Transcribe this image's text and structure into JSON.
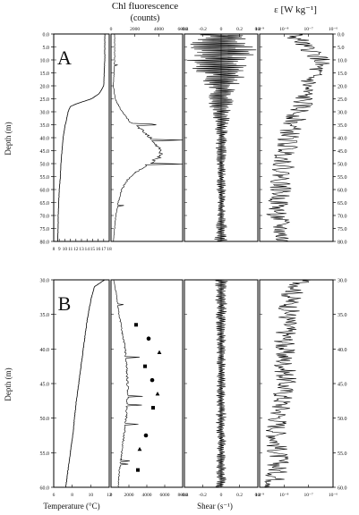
{
  "figure": {
    "header_chl": "Chl fluorescence",
    "header_counts": "(counts)",
    "header_eps": "ε [W kg⁻¹]",
    "xlabel_temp": "Temperature (°C)",
    "xlabel_shear": "Shear (s⁻¹)",
    "ylabel": "Depth (m)"
  },
  "chart_data": [
    {
      "panel_label": "A",
      "type": "line",
      "ylabel": "Depth (m)",
      "ylim": [
        80,
        0
      ],
      "depth_ticks": [
        "0.0",
        "5.0",
        "10.0",
        "15.0",
        "20.0",
        "25.0",
        "30.0",
        "35.0",
        "40.0",
        "45.0",
        "50.0",
        "55.0",
        "60.0",
        "65.0",
        "70.0",
        "75.0",
        "80.0"
      ],
      "subplots": [
        {
          "name": "temperature",
          "xlim": [
            8,
            18
          ],
          "xticks": [
            "8",
            "9",
            "10",
            "11",
            "12",
            "13",
            "14",
            "15",
            "16",
            "17",
            "18"
          ],
          "depth": [
            0,
            10,
            20,
            23,
            25,
            27,
            28,
            30,
            33,
            36,
            40,
            45,
            50,
            55,
            60,
            65,
            70,
            75,
            80
          ],
          "values": [
            17.2,
            17.2,
            17.0,
            16.2,
            14.8,
            12.0,
            11.0,
            10.6,
            10.3,
            10.0,
            9.7,
            9.5,
            9.3,
            9.2,
            9.0,
            8.9,
            8.8,
            8.8,
            8.7
          ]
        },
        {
          "name": "chl_fluorescence",
          "xlim": [
            0,
            6000
          ],
          "xticks": [
            "0",
            "2000",
            "4000",
            "6000"
          ],
          "depth": [
            0,
            10,
            20,
            25,
            30,
            34,
            37,
            40,
            43,
            46,
            48,
            50,
            53,
            56,
            60,
            65,
            70,
            75,
            80
          ],
          "values": [
            300,
            300,
            200,
            350,
            900,
            1600,
            2600,
            3300,
            3800,
            4200,
            3900,
            3200,
            2200,
            1400,
            900,
            600,
            400,
            300,
            200
          ]
        },
        {
          "name": "shear",
          "xlim": [
            -0.4,
            0.4
          ],
          "xticks": [
            "-0.4",
            "-0.2",
            "0",
            "0.2",
            "0.4"
          ],
          "depth": [
            0,
            5,
            10,
            15,
            20,
            25,
            30,
            35,
            40,
            45,
            50,
            55,
            60,
            65,
            70,
            75,
            80
          ],
          "values": [
            0.3,
            0.38,
            0.4,
            0.3,
            0.2,
            0.15,
            0.12,
            0.08,
            0.07,
            0.06,
            0.05,
            0.05,
            0.06,
            0.05,
            0.05,
            0.07,
            0.08
          ]
        },
        {
          "name": "epsilon",
          "xscale": "log",
          "xlim": [
            1e-09,
            1e-06
          ],
          "xticks": [
            "10⁻⁹",
            "10⁻⁸",
            "10⁻⁷",
            "10⁻⁶"
          ],
          "depth": [
            0,
            5,
            10,
            15,
            20,
            25,
            30,
            35,
            40,
            45,
            50,
            55,
            60,
            65,
            70,
            75,
            80
          ],
          "values": [
            2e-08,
            6e-08,
            3e-07,
            1.5e-07,
            8e-08,
            6e-08,
            4e-08,
            2e-08,
            1.5e-08,
            1.2e-08,
            1e-08,
            8e-09,
            7e-09,
            6e-09,
            5e-09,
            7e-09,
            8e-09
          ]
        }
      ]
    },
    {
      "panel_label": "B",
      "type": "line",
      "ylabel": "Depth (m)",
      "ylim": [
        60,
        30
      ],
      "depth_ticks": [
        "30.0",
        "35.0",
        "40.0",
        "45.0",
        "50.0",
        "55.0",
        "60.0"
      ],
      "subplots": [
        {
          "name": "temperature",
          "xlim": [
            6,
            12
          ],
          "xticks": [
            "6",
            "8",
            "10",
            "12"
          ],
          "depth": [
            30,
            31,
            33,
            36,
            40,
            44,
            48,
            52,
            56,
            60
          ],
          "values": [
            11.5,
            10.4,
            10.0,
            9.6,
            9.2,
            8.8,
            8.4,
            8.1,
            7.7,
            7.3
          ]
        },
        {
          "name": "chl_fluorescence",
          "xlim": [
            0,
            8000
          ],
          "xticks": [
            "0",
            "2000",
            "4000",
            "6000",
            "8000"
          ],
          "depth": [
            30,
            32,
            35,
            38,
            40,
            42,
            44,
            46,
            48,
            50,
            52,
            54,
            56,
            58,
            60
          ],
          "values": [
            300,
            600,
            900,
            1300,
            1600,
            1700,
            1800,
            1900,
            1800,
            1700,
            1500,
            1300,
            1100,
            900,
            800
          ],
          "markers": {
            "depth": [
              36.5,
              38.5,
              40.5,
              42.5,
              44.5,
              46.5,
              48.5,
              52.5,
              54.5,
              57.5
            ],
            "values": [
              2800,
              4200,
              5400,
              3800,
              4600,
              5200,
              4700,
              3900,
              3200,
              3000
            ]
          }
        },
        {
          "name": "shear",
          "xlim": [
            -0.4,
            0.4
          ],
          "xticks": [
            "-0.4",
            "-0.2",
            "0",
            "0.2",
            "0.4"
          ],
          "depth": [
            30,
            35,
            40,
            45,
            50,
            55,
            60
          ],
          "values": [
            0.08,
            0.06,
            0.05,
            0.05,
            0.06,
            0.05,
            0.06
          ]
        },
        {
          "name": "epsilon",
          "xscale": "log",
          "xlim": [
            1e-09,
            1e-06
          ],
          "xticks": [
            "10⁻⁹",
            "10⁻⁸",
            "10⁻⁷",
            "10⁻⁶"
          ],
          "depth": [
            30,
            32,
            35,
            38,
            40,
            42,
            44,
            46,
            48,
            50,
            52,
            54,
            56,
            58,
            60
          ],
          "values": [
            6e-08,
            2e-08,
            1.5e-08,
            1.2e-08,
            1e-08,
            1e-08,
            1.2e-08,
            1e-08,
            8e-09,
            6e-09,
            5e-09,
            5e-09,
            6e-09,
            5e-09,
            4e-09
          ]
        }
      ]
    }
  ]
}
